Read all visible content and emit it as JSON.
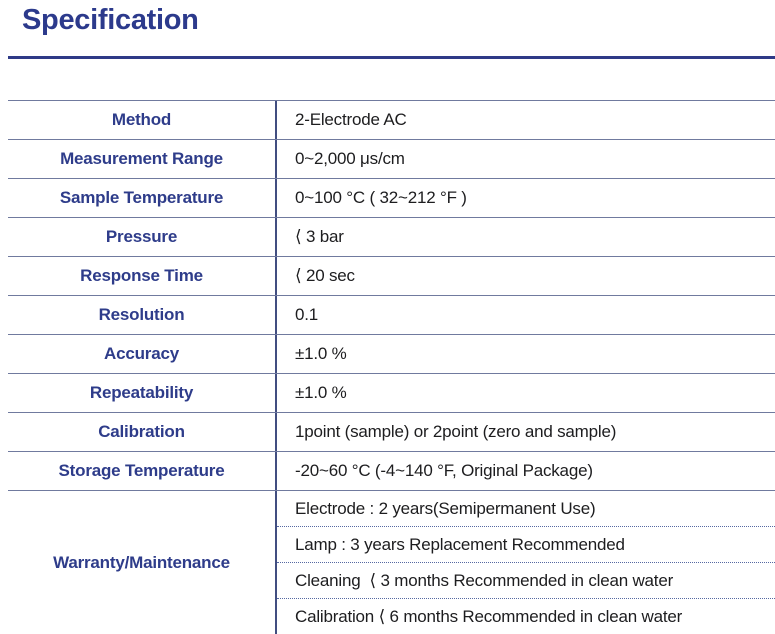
{
  "header": {
    "title": "Specification"
  },
  "table": {
    "rows": [
      {
        "label": "Method",
        "value": "2-Electrode AC"
      },
      {
        "label": "Measurement Range",
        "value": "0~2,000 μs/cm"
      },
      {
        "label": "Sample Temperature",
        "value": "0~100 °C ( 32~212 °F )"
      },
      {
        "label": "Pressure",
        "value": "⟨ 3 bar"
      },
      {
        "label": "Response Time",
        "value": "⟨ 20 sec"
      },
      {
        "label": "Resolution",
        "value": "0.1"
      },
      {
        "label": "Accuracy",
        "value": "±1.0 %"
      },
      {
        "label": "Repeatability",
        "value": "±1.0 %"
      },
      {
        "label": "Calibration",
        "value": "1point (sample) or 2point (zero and sample)"
      },
      {
        "label": "Storage Temperature",
        "value": "-20~60 °C (-4~140 °F, Original Package)"
      },
      {
        "label": "Warranty/Maintenance",
        "values": [
          "Electrode : 2 years(Semipermanent Use)",
          "Lamp : 3 years Replacement Recommended",
          "Cleaning  ⟨ 3 months Recommended in clean water",
          "Calibration ⟨ 6 months Recommended in clean water"
        ]
      }
    ]
  },
  "colors": {
    "heading": "#2c3a8c",
    "label_text": "#2e3c8a",
    "value_text": "#1d1d1f",
    "title_rule": "#2e3a87",
    "row_line": "#707a9e",
    "column_line": "#414e80",
    "dotted_line": "#5668a2"
  }
}
